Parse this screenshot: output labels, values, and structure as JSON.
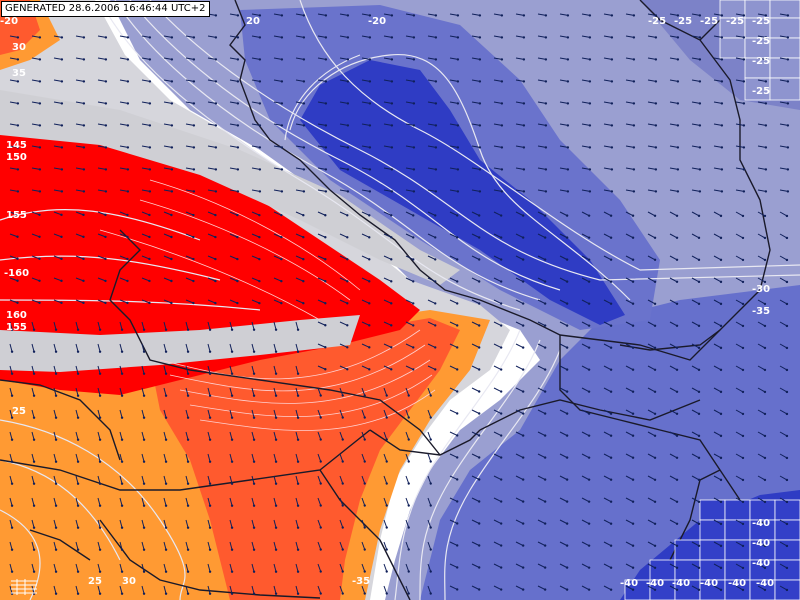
{
  "header": {
    "generated_text": "GENERATED 28.6.2006 16:46:44 UTC+2"
  },
  "colors": {
    "strong_red": "#ff0000",
    "red_orange": "#ff5a2e",
    "orange": "#ff9a33",
    "white_band": "#ffffff",
    "light_blue": "#9a9fd1",
    "mid_blue": "#6670cc",
    "deep_blue": "#2f3cc4",
    "border": "#1a1a2a",
    "contour": "#d8d8e8",
    "arrow": "#10205a"
  },
  "labels": [
    {
      "text": "-20",
      "name": "contour-label-top-left"
    },
    {
      "text": "20",
      "name": "contour-label-top-center"
    },
    {
      "text": "-20",
      "name": "contour-label-top-right"
    },
    {
      "text": "-25",
      "name": "contour-label-ne-1"
    },
    {
      "text": "-25",
      "name": "contour-label-ne-2"
    },
    {
      "text": "-25",
      "name": "contour-label-ne-3"
    },
    {
      "text": "-25",
      "name": "contour-label-ne-4"
    },
    {
      "text": "-25",
      "name": "contour-label-ne-5"
    },
    {
      "text": "-25",
      "name": "contour-label-ne-6"
    },
    {
      "text": "-25",
      "name": "contour-label-ne-7"
    },
    {
      "text": "-25",
      "name": "contour-label-ne-8"
    },
    {
      "text": "30",
      "name": "contour-label-w-30"
    },
    {
      "text": "35",
      "name": "contour-label-w-35"
    },
    {
      "text": "145",
      "name": "contour-label-w-145"
    },
    {
      "text": "150",
      "name": "contour-label-w-150"
    },
    {
      "text": "155",
      "name": "contour-label-w-155"
    },
    {
      "text": "-160",
      "name": "contour-label-w-160"
    },
    {
      "text": "160",
      "name": "contour-label-w-160b"
    },
    {
      "text": "155",
      "name": "contour-label-w-155b"
    },
    {
      "text": "25",
      "name": "contour-label-w-25"
    },
    {
      "text": "-30",
      "name": "contour-label-e-30"
    },
    {
      "text": "-35",
      "name": "contour-label-e-35"
    },
    {
      "text": "-40",
      "name": "contour-label-se-40a"
    },
    {
      "text": "-40",
      "name": "contour-label-se-40b"
    },
    {
      "text": "-40",
      "name": "contour-label-se-40c"
    },
    {
      "text": "-40",
      "name": "contour-label-se-40d"
    },
    {
      "text": "-40",
      "name": "contour-label-se-40e"
    },
    {
      "text": "-40",
      "name": "contour-label-se-40f"
    },
    {
      "text": "-40",
      "name": "contour-label-se-40g"
    },
    {
      "text": "-40",
      "name": "contour-label-se-40h"
    },
    {
      "text": "-40",
      "name": "contour-label-se-40i"
    },
    {
      "text": "25",
      "name": "contour-label-bottom-25"
    },
    {
      "text": "30",
      "name": "contour-label-bottom-30"
    },
    {
      "text": "-35",
      "name": "contour-label-bottom-35"
    }
  ]
}
